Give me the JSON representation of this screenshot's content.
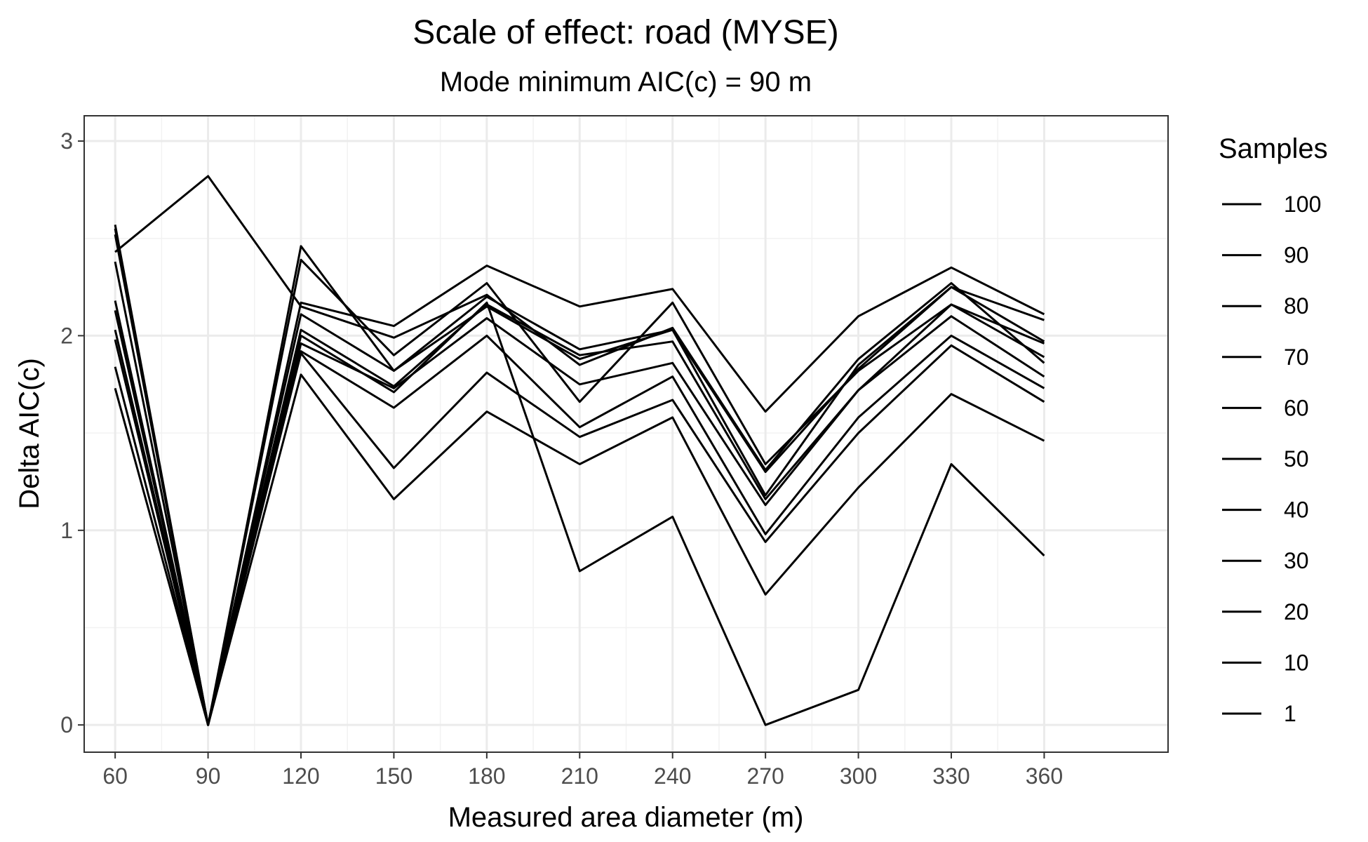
{
  "chart_data": {
    "type": "line",
    "title": "Scale of effect: road (MYSE)",
    "subtitle": "Mode minimum AIC(c) = 90 m",
    "xlabel": "Measured area diameter (m)",
    "ylabel": "Delta AIC(c)",
    "x": [
      60,
      90,
      120,
      150,
      180,
      210,
      240,
      270,
      300,
      330,
      360
    ],
    "x_ticks": [
      "60",
      "90",
      "120",
      "150",
      "180",
      "210",
      "240",
      "270",
      "300",
      "330",
      "360"
    ],
    "y_ticks": [
      "0",
      "1",
      "2",
      "3"
    ],
    "xlim": [
      50,
      400
    ],
    "ylim": [
      -0.14,
      3.13
    ],
    "grid": true,
    "line_color": "#000000",
    "legend": {
      "title": "Samples",
      "position": "right",
      "labels": [
        "100",
        "90",
        "80",
        "70",
        "60",
        "50",
        "40",
        "30",
        "20",
        "10",
        "1"
      ]
    },
    "series": [
      {
        "values": [
          2.43,
          2.82,
          2.15,
          1.99,
          2.21,
          1.85,
          2.04,
          1.31,
          1.88,
          2.27,
          1.86
        ]
      },
      {
        "values": [
          2.57,
          0.0,
          2.46,
          1.82,
          2.15,
          1.88,
          2.03,
          1.3,
          1.83,
          2.25,
          1.97
        ]
      },
      {
        "values": [
          2.55,
          0.0,
          2.39,
          1.9,
          2.27,
          1.66,
          2.17,
          1.34,
          1.82,
          2.16,
          1.96
        ]
      },
      {
        "values": [
          2.52,
          0.0,
          2.17,
          2.05,
          2.36,
          2.15,
          2.24,
          1.61,
          2.1,
          2.35,
          2.11
        ]
      },
      {
        "values": [
          2.38,
          0.0,
          2.11,
          1.82,
          2.2,
          1.93,
          2.03,
          1.18,
          1.85,
          2.25,
          2.08
        ]
      },
      {
        "values": [
          2.18,
          0.0,
          2.03,
          1.74,
          2.16,
          1.9,
          1.97,
          1.16,
          1.72,
          2.16,
          1.89
        ]
      },
      {
        "values": [
          2.13,
          0.0,
          2.0,
          1.71,
          2.17,
          0.79,
          1.07,
          0.0,
          0.18,
          1.34,
          0.87
        ]
      },
      {
        "values": [
          2.03,
          0.0,
          1.96,
          1.73,
          2.09,
          1.75,
          1.86,
          1.13,
          1.72,
          2.1,
          1.79
        ]
      },
      {
        "values": [
          1.98,
          0.0,
          1.92,
          1.63,
          2.0,
          1.53,
          1.79,
          0.98,
          1.58,
          2.0,
          1.73
        ]
      },
      {
        "values": [
          1.84,
          0.0,
          1.91,
          1.32,
          1.81,
          1.48,
          1.67,
          0.94,
          1.5,
          1.95,
          1.66
        ]
      },
      {
        "values": [
          1.73,
          0.0,
          1.8,
          1.16,
          1.61,
          1.34,
          1.58,
          0.67,
          1.22,
          1.7,
          1.46
        ]
      }
    ]
  }
}
